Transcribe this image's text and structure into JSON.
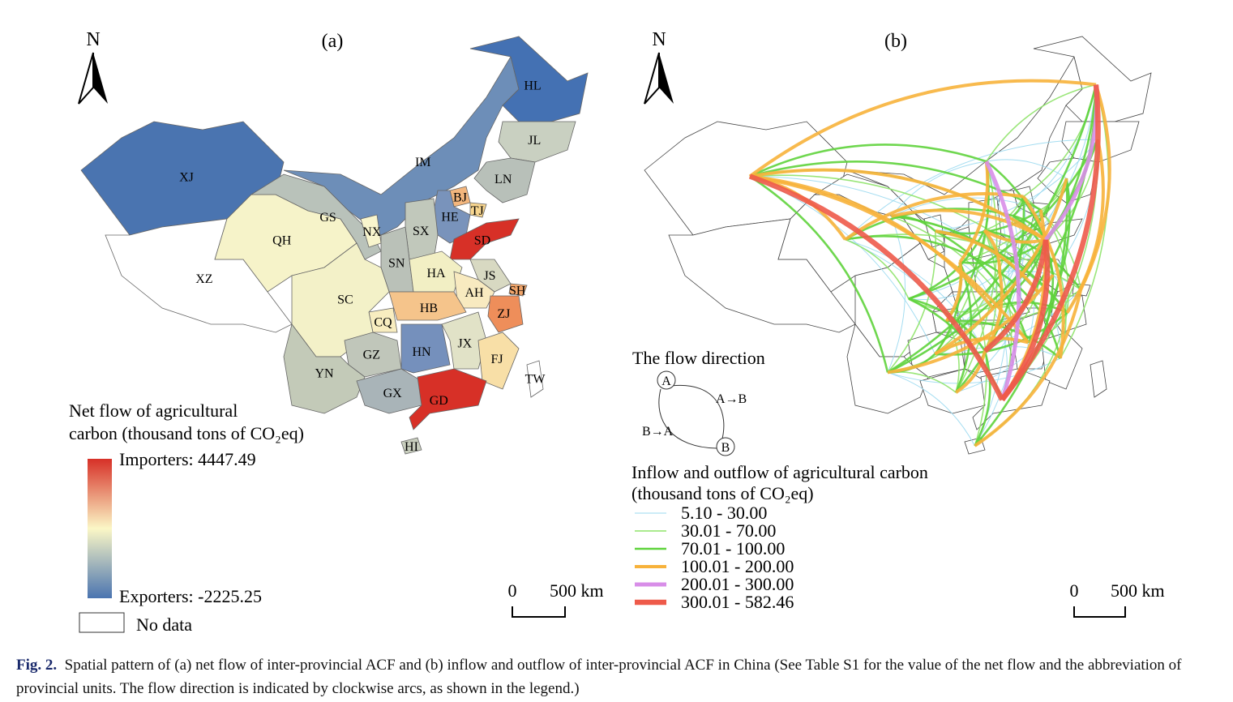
{
  "figure_caption": {
    "label": "Fig. 2.",
    "text": "Spatial pattern of (a) net flow of inter-provincial ACF and (b) inflow and outflow of inter-provincial ACF in China (See Table S1 for the value of the net flow and the abbreviation of provincial units. The flow direction is indicated by clockwise arcs, as shown in the legend.)"
  },
  "panel_a": {
    "title": "(a)",
    "north": "N",
    "provinces": [
      {
        "label": "XJ",
        "color": "#4a74b0"
      },
      {
        "label": "XZ",
        "color": "#ffffff"
      },
      {
        "label": "QH",
        "color": "#f6f3c9"
      },
      {
        "label": "GS",
        "color": "#b9c2ba"
      },
      {
        "label": "IM",
        "color": "#6d8eb8"
      },
      {
        "label": "HL",
        "color": "#4471b3"
      },
      {
        "label": "JL",
        "color": "#c9d0c1"
      },
      {
        "label": "LN",
        "color": "#b8c0b9"
      },
      {
        "label": "BJ",
        "color": "#f3b67d"
      },
      {
        "label": "TJ",
        "color": "#f7d58e"
      },
      {
        "label": "HE",
        "color": "#7993bb"
      },
      {
        "label": "SD",
        "color": "#d73027"
      },
      {
        "label": "SX",
        "color": "#c1c8bb"
      },
      {
        "label": "NX",
        "color": "#f8f5cd"
      },
      {
        "label": "SN",
        "color": "#bac1b8"
      },
      {
        "label": "HA",
        "color": "#f2efc4"
      },
      {
        "label": "JS",
        "color": "#d8d9c2"
      },
      {
        "label": "SH",
        "color": "#f1a56a"
      },
      {
        "label": "AH",
        "color": "#f8eac0"
      },
      {
        "label": "HB",
        "color": "#f5c48b"
      },
      {
        "label": "ZJ",
        "color": "#ee8e5a"
      },
      {
        "label": "CQ",
        "color": "#f8edc0"
      },
      {
        "label": "SC",
        "color": "#f3f1c8"
      },
      {
        "label": "GZ",
        "color": "#c0c6ba"
      },
      {
        "label": "HN",
        "color": "#7590bc"
      },
      {
        "label": "JX",
        "color": "#e1e2c7"
      },
      {
        "label": "FJ",
        "color": "#f8dfa7"
      },
      {
        "label": "YN",
        "color": "#c3cab8"
      },
      {
        "label": "GX",
        "color": "#a9b4b8"
      },
      {
        "label": "GD",
        "color": "#d73027"
      },
      {
        "label": "HI",
        "color": "#c8cebd"
      },
      {
        "label": "TW",
        "color": "#ffffff"
      }
    ],
    "legend": {
      "title_line1": "Net flow of agricultural",
      "title_line2": "carbon (thousand tons of CO₂eq)",
      "max_label": "Importers: 4447.49",
      "min_label": "Exporters: -2225.25",
      "max_color": "#d73027",
      "mid_color": "#fbf7c6",
      "min_color": "#4a74b0",
      "no_data": "No data"
    },
    "scale_bar": {
      "zero": "0",
      "label": "500 km"
    }
  },
  "panel_b": {
    "title": "(b)",
    "north": "N",
    "flow_direction": {
      "title": "The flow direction",
      "node_a": "A",
      "node_b": "B",
      "a_to_b": "A→B",
      "b_to_a": "B→A"
    },
    "legend": {
      "title_line1": "Inflow and outflow of agricultural carbon",
      "title_line2": "(thousand tons of CO₂eq)",
      "classes": [
        {
          "label": "5.10 - 30.00",
          "color": "#9ad9ef"
        },
        {
          "label": "30.01 - 70.00",
          "color": "#8fe36a"
        },
        {
          "label": "70.01 - 100.00",
          "color": "#5fd33c"
        },
        {
          "label": "100.01 - 200.00",
          "color": "#f7b23b"
        },
        {
          "label": "200.01 - 300.00",
          "color": "#d88ee8"
        },
        {
          "label": "300.01 - 582.46",
          "color": "#ee5a4a"
        }
      ]
    },
    "scale_bar": {
      "zero": "0",
      "label": "500 km"
    }
  }
}
